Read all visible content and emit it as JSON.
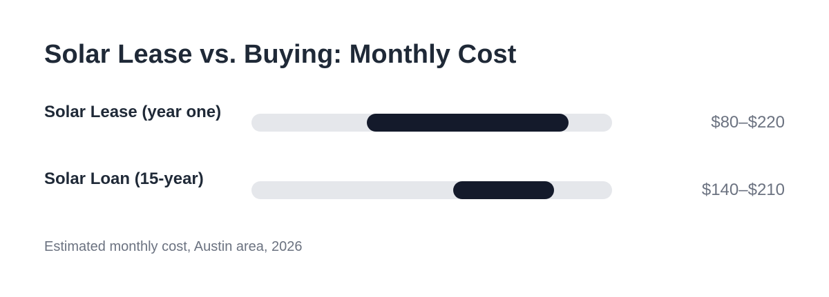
{
  "chart_data": {
    "type": "bar",
    "subtype": "range",
    "title": "Solar Lease vs. Buying: Monthly Cost",
    "footnote": "Estimated monthly cost, Austin area, 2026",
    "xlim": [
      0,
      250
    ],
    "grid": false,
    "legend": "none",
    "colors": {
      "track": "#e5e7eb",
      "fill": "#141a2b",
      "label": "#1f2937",
      "value": "#6b7280"
    },
    "rows": [
      {
        "label": "Solar Lease (year one)",
        "low": 80,
        "high": 220,
        "value_label": "$80–$220"
      },
      {
        "label": "Solar Loan (15-year)",
        "low": 140,
        "high": 210,
        "value_label": "$140–$210"
      }
    ]
  }
}
